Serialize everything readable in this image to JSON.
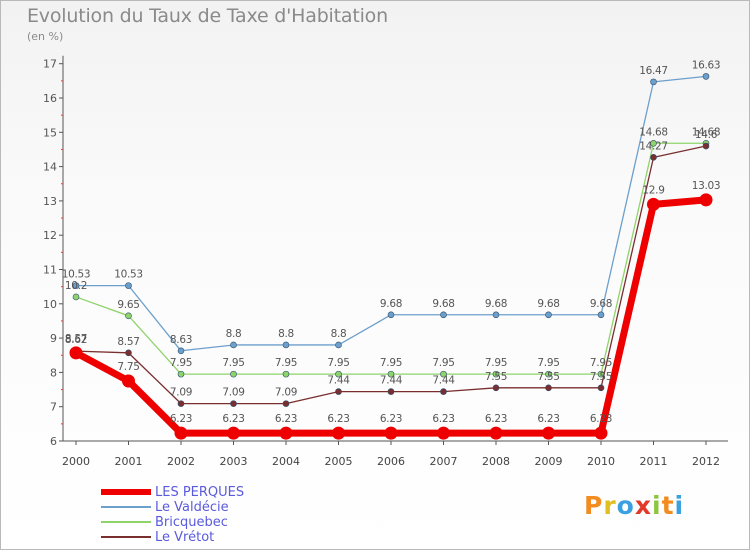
{
  "title": "Evolution du Taux de Taxe d'Habitation",
  "subtitle": "(en %)",
  "logo": {
    "text": "Proxiti",
    "letters": [
      {
        "ch": "P",
        "color": "#f28c1e"
      },
      {
        "ch": "r",
        "color": "#e0c020"
      },
      {
        "ch": "o",
        "color": "#3aa0e0"
      },
      {
        "ch": "x",
        "color": "#e23a2a"
      },
      {
        "ch": "i",
        "color": "#8cc63e"
      },
      {
        "ch": "t",
        "color": "#f28c1e"
      },
      {
        "ch": "i",
        "color": "#3aa0e0"
      }
    ]
  },
  "chart_data": {
    "type": "line",
    "title": "Evolution du Taux de Taxe d'Habitation",
    "ylabel": "(en %)",
    "xlabel": "",
    "ylim": [
      6,
      17
    ],
    "yticks": [
      6,
      7,
      8,
      9,
      10,
      11,
      12,
      13,
      14,
      15,
      16,
      17
    ],
    "grid": false,
    "legend_position": "bottom-left",
    "x": [
      "2000",
      "2001",
      "2002",
      "2003",
      "2004",
      "2005",
      "2006",
      "2007",
      "2008",
      "2009",
      "2010",
      "2011",
      "2012"
    ],
    "series": [
      {
        "name": "LES PERQUES",
        "color": "#ee0000",
        "values": [
          8.57,
          7.75,
          6.23,
          6.23,
          6.23,
          6.23,
          6.23,
          6.23,
          6.23,
          6.23,
          6.23,
          12.9,
          13.03
        ],
        "labels": [
          "8.57",
          "7.75",
          "6.23",
          "6.23",
          "6.23",
          "6.23",
          "6.23",
          "6.23",
          "6.23",
          "6.23",
          "6.23",
          "12.9",
          "13.03"
        ]
      },
      {
        "name": "Le Valdécie",
        "color": "#6d9fcb",
        "values": [
          10.53,
          10.53,
          8.63,
          8.8,
          8.8,
          8.8,
          9.68,
          9.68,
          9.68,
          9.68,
          9.68,
          16.47,
          16.63
        ],
        "labels": [
          "10.53",
          "10.53",
          "8.63",
          "8.8",
          "8.8",
          "8.8",
          "9.68",
          "9.68",
          "9.68",
          "9.68",
          "9.68",
          "16.47",
          "16.63"
        ]
      },
      {
        "name": "Bricquebec",
        "color": "#8fd36b",
        "values": [
          10.2,
          9.65,
          7.95,
          7.95,
          7.95,
          7.95,
          7.95,
          7.95,
          7.95,
          7.95,
          7.95,
          14.68,
          14.68
        ],
        "labels": [
          "10.2",
          "9.65",
          "7.95",
          "7.95",
          "7.95",
          "7.95",
          "7.95",
          "7.95",
          "7.95",
          "7.95",
          "7.95",
          "14.68",
          "14.68"
        ]
      },
      {
        "name": "Le Vrétot",
        "color": "#7a2e2e",
        "values": [
          8.62,
          8.57,
          7.09,
          7.09,
          7.09,
          7.44,
          7.44,
          7.44,
          7.55,
          7.55,
          7.55,
          14.27,
          14.6
        ],
        "labels": [
          "8.62",
          "8.57",
          "7.09",
          "7.09",
          "7.09",
          "7.44",
          "7.44",
          "7.44",
          "7.55",
          "7.55",
          "7.55",
          "14.27",
          "14.6"
        ]
      }
    ]
  }
}
